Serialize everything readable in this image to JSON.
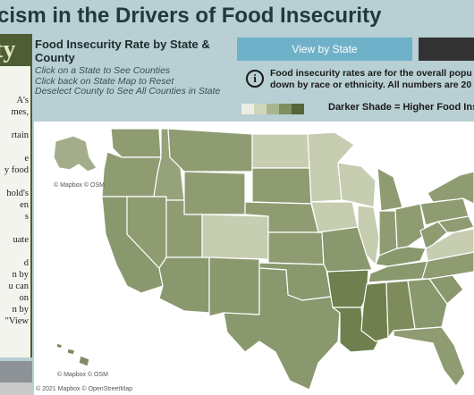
{
  "page_title": "cism in the Drivers of Food Insecurity",
  "sidebar": {
    "logo": "ty",
    "text": "A's\nmes,\n\nrtain\n\ne\ny food\n\nhold's\nen\ns\n\nuate\n\nd\nn by\nu can\non\nn by\n\"View"
  },
  "panel": {
    "heading": "Food Insecurity Rate by State & County",
    "instructions": [
      "Click on a State to See Counties",
      "Click back on State Map to Reset",
      "Deselect County to See All Counties in State"
    ]
  },
  "buttons": {
    "view_by_state": "View by State"
  },
  "info": {
    "icon": "info-icon",
    "line1": "Food insecurity rates are for the overall popu",
    "line2": "down by race or ethnicity. All numbers are 20"
  },
  "legend": {
    "colors": [
      "#eceee3",
      "#cfd6bc",
      "#a9b68d",
      "#7f9060",
      "#56663a"
    ],
    "label": "Darker Shade = Higher Food Insec"
  },
  "map": {
    "mapbox_label_ak": "© Mapbox  © OSM",
    "mapbox_label_hi": "© Mapbox  © OSM",
    "attribution": "© 2021 Mapbox  © OpenStreetMap",
    "state_fill": "#8d9b72",
    "border": "#ffffff"
  }
}
